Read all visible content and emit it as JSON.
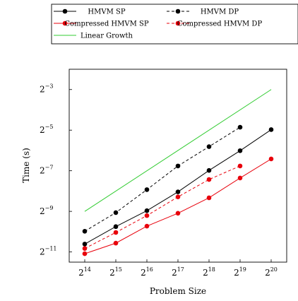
{
  "chart_data": {
    "type": "line",
    "title": "",
    "xlabel": "Problem Size",
    "ylabel": "Time (s)",
    "x_scale": "log2",
    "y_scale": "log2",
    "x_ticks": [
      {
        "base": "2",
        "exp": "14",
        "value": 16384
      },
      {
        "base": "2",
        "exp": "15",
        "value": 32768
      },
      {
        "base": "2",
        "exp": "16",
        "value": 65536
      },
      {
        "base": "2",
        "exp": "17",
        "value": 131072
      },
      {
        "base": "2",
        "exp": "18",
        "value": 262144
      },
      {
        "base": "2",
        "exp": "19",
        "value": 524288
      },
      {
        "base": "2",
        "exp": "20",
        "value": 1048576
      }
    ],
    "y_ticks": [
      {
        "base": "2",
        "exp": "−11",
        "value": 0.00048828125
      },
      {
        "base": "2",
        "exp": "−9",
        "value": 0.001953125
      },
      {
        "base": "2",
        "exp": "−7",
        "value": 0.0078125
      },
      {
        "base": "2",
        "exp": "−5",
        "value": 0.03125
      },
      {
        "base": "2",
        "exp": "−3",
        "value": 0.125
      }
    ],
    "xlim": [
      11585,
      1482910
    ],
    "ylim": [
      0.000345,
      0.25
    ],
    "grid": false,
    "legend_position": "top",
    "series": [
      {
        "name": "HMVM SP",
        "color": "#000000",
        "dashed": false,
        "marker": true,
        "x": [
          16384,
          32768,
          65536,
          131072,
          262144,
          524288,
          1048576
        ],
        "y": [
          0.00064,
          0.00116,
          0.002,
          0.0038,
          0.0079,
          0.0155,
          0.0318
        ]
      },
      {
        "name": "HMVM DP",
        "color": "#000000",
        "dashed": true,
        "marker": true,
        "x": [
          16384,
          32768,
          65536,
          131072,
          262144,
          524288
        ],
        "y": [
          0.00099,
          0.00187,
          0.0041,
          0.0092,
          0.0178,
          0.0345
        ]
      },
      {
        "name": "Compressed HMVM SP",
        "color": "#e8000b",
        "dashed": false,
        "marker": true,
        "x": [
          16384,
          32768,
          65536,
          131072,
          262144,
          524288,
          1048576
        ],
        "y": [
          0.00046,
          0.00066,
          0.00118,
          0.00183,
          0.0031,
          0.0061,
          0.0117
        ]
      },
      {
        "name": "Compressed HMVM DP",
        "color": "#e8000b",
        "dashed": true,
        "marker": true,
        "x": [
          16384,
          32768,
          65536,
          131072,
          262144,
          524288
        ],
        "y": [
          0.00055,
          0.00095,
          0.00169,
          0.0032,
          0.0058,
          0.0092
        ]
      },
      {
        "name": "Linear Growth",
        "color": "#33cc33",
        "dashed": false,
        "marker": false,
        "x": [
          16384,
          1048576
        ],
        "y": [
          0.00195,
          0.125
        ]
      }
    ]
  }
}
